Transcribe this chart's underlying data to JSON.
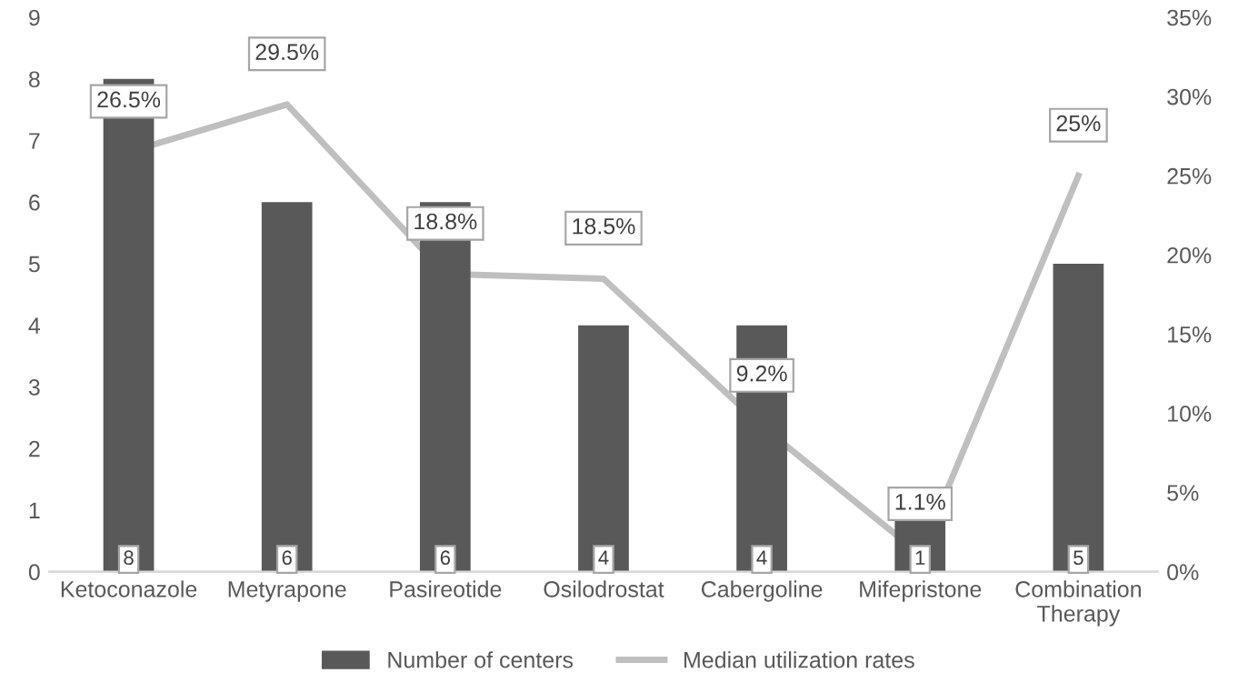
{
  "chart_data": {
    "type": "bar",
    "categories": [
      "Ketoconazole",
      "Metyrapone",
      "Pasireotide",
      "Osilodrostat",
      "Cabergoline",
      "Mifepristone",
      "Combination Therapy"
    ],
    "series": [
      {
        "name": "Number of centers",
        "color": "#595959",
        "values": [
          8,
          6,
          6,
          4,
          4,
          1,
          5
        ]
      },
      {
        "name": "Median utilization rates",
        "type": "line",
        "axis": "y2",
        "color": "#bfbfbf",
        "values": [
          26.5,
          29.5,
          18.8,
          18.5,
          9.2,
          1.1,
          25
        ],
        "value_labels": [
          "26.5%",
          "29.5%",
          "18.8%",
          "18.5%",
          "9.2%",
          "1.1%",
          "25%"
        ]
      }
    ],
    "data_labels": true,
    "ylim": [
      0,
      9
    ],
    "yticks": [
      0,
      1,
      2,
      3,
      4,
      5,
      6,
      7,
      8,
      9
    ],
    "y2lim": [
      0,
      35
    ],
    "y2ticks": [
      {
        "value": 0,
        "label": "0%"
      },
      {
        "value": 5,
        "label": "5%"
      },
      {
        "value": 10,
        "label": "10%"
      },
      {
        "value": 15,
        "label": "15%"
      },
      {
        "value": 20,
        "label": "20%"
      },
      {
        "value": 25,
        "label": "25%"
      },
      {
        "value": 30,
        "label": "30%"
      },
      {
        "value": 35,
        "label": "35%"
      }
    ],
    "legend": "bottom",
    "grid": false,
    "marker": "none",
    "line_style": "solid"
  }
}
